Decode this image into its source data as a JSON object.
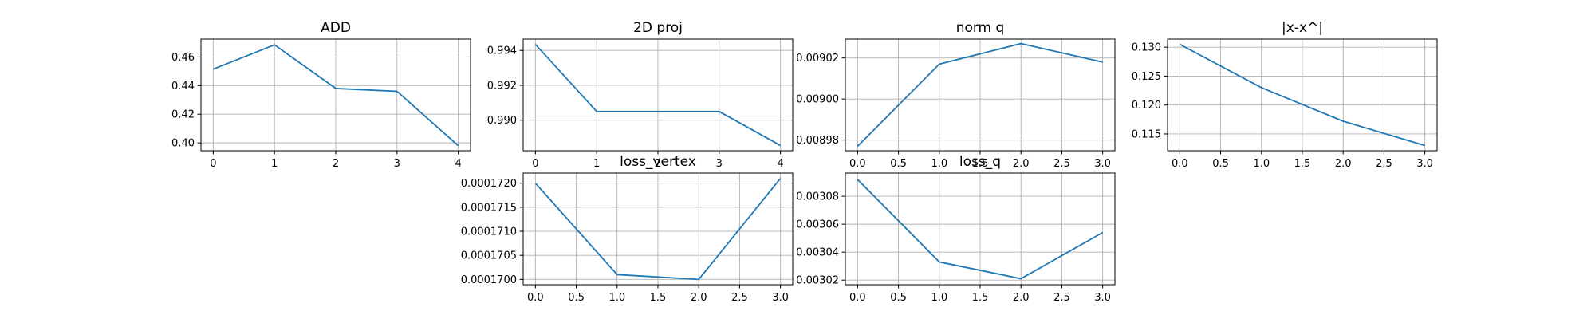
{
  "chart_data": [
    {
      "type": "line",
      "title": "ADD",
      "xlabel": "",
      "ylabel": "",
      "x": [
        0,
        1,
        2,
        3,
        4
      ],
      "series": [
        {
          "values": [
            0.4515,
            0.4685,
            0.438,
            0.436,
            0.398
          ]
        }
      ],
      "xlim": [
        -0.2,
        4.2
      ],
      "ylim": [
        0.3945,
        0.4725
      ],
      "xticks": [
        0,
        1,
        2,
        3,
        4
      ],
      "yticks": [
        0.4,
        0.42,
        0.44,
        0.46
      ],
      "xtick_labels": [
        "0",
        "1",
        "2",
        "3",
        "4"
      ],
      "ytick_labels": [
        "0.40",
        "0.42",
        "0.44",
        "0.46"
      ],
      "grid": true,
      "color": "#1f77b4"
    },
    {
      "type": "line",
      "title": "2D proj",
      "xlabel": "",
      "ylabel": "",
      "x": [
        0,
        1,
        2,
        3,
        4
      ],
      "series": [
        {
          "values": [
            0.99435,
            0.9905,
            0.9905,
            0.9905,
            0.98855
          ]
        }
      ],
      "xlim": [
        -0.2,
        4.2
      ],
      "ylim": [
        0.98825,
        0.99465
      ],
      "xticks": [
        0,
        1,
        2,
        3,
        4
      ],
      "yticks": [
        0.99,
        0.992,
        0.994
      ],
      "xtick_labels": [
        "0",
        "1",
        "2",
        "3",
        "4"
      ],
      "ytick_labels": [
        "0.990",
        "0.992",
        "0.994"
      ],
      "grid": true,
      "color": "#1f77b4"
    },
    {
      "type": "line",
      "title": "norm q",
      "xlabel": "",
      "ylabel": "",
      "x": [
        0,
        1,
        2,
        3
      ],
      "series": [
        {
          "values": [
            0.008977,
            0.009017,
            0.009027,
            0.009018
          ]
        }
      ],
      "xlim": [
        -0.15,
        3.15
      ],
      "ylim": [
        0.0089748,
        0.0090292
      ],
      "xticks": [
        0,
        0.5,
        1,
        1.5,
        2,
        2.5,
        3
      ],
      "yticks": [
        0.00898,
        0.009,
        0.00902
      ],
      "xtick_labels": [
        "0.0",
        "0.5",
        "1.0",
        "1.5",
        "2.0",
        "2.5",
        "3.0"
      ],
      "ytick_labels": [
        "0.00898",
        "0.00900",
        "0.00902"
      ],
      "grid": true,
      "color": "#1f77b4"
    },
    {
      "type": "line",
      "title": "|x-x^|",
      "xlabel": "",
      "ylabel": "",
      "x": [
        0,
        1,
        2,
        3
      ],
      "series": [
        {
          "values": [
            0.1305,
            0.123,
            0.1172,
            0.113
          ]
        }
      ],
      "xlim": [
        -0.15,
        3.15
      ],
      "ylim": [
        0.1121,
        0.1314
      ],
      "xticks": [
        0,
        0.5,
        1,
        1.5,
        2,
        2.5,
        3
      ],
      "yticks": [
        0.115,
        0.12,
        0.125,
        0.13
      ],
      "xtick_labels": [
        "0.0",
        "0.5",
        "1.0",
        "1.5",
        "2.0",
        "2.5",
        "3.0"
      ],
      "ytick_labels": [
        "0.115",
        "0.120",
        "0.125",
        "0.130"
      ],
      "grid": true,
      "color": "#1f77b4"
    },
    {
      "type": "line",
      "title": "loss_vertex",
      "xlabel": "",
      "ylabel": "",
      "x": [
        0,
        1,
        2,
        3
      ],
      "series": [
        {
          "values": [
            0.000172,
            0.0001701,
            0.00017,
            0.0001721
          ]
        }
      ],
      "xlim": [
        -0.15,
        3.15
      ],
      "ylim": [
        0.00016989,
        0.00017221
      ],
      "xticks": [
        0,
        0.5,
        1,
        1.5,
        2,
        2.5,
        3
      ],
      "yticks": [
        0.00017,
        0.0001705,
        0.000171,
        0.0001715,
        0.000172
      ],
      "xtick_labels": [
        "0.0",
        "0.5",
        "1.0",
        "1.5",
        "2.0",
        "2.5",
        "3.0"
      ],
      "ytick_labels": [
        "0.0001700",
        "0.0001705",
        "0.0001710",
        "0.0001715",
        "0.0001720"
      ],
      "grid": true,
      "color": "#1f77b4"
    },
    {
      "type": "line",
      "title": "loss_q",
      "xlabel": "",
      "ylabel": "",
      "x": [
        0,
        1,
        2,
        3
      ],
      "series": [
        {
          "values": [
            0.003092,
            0.003033,
            0.003021,
            0.003054
          ]
        }
      ],
      "xlim": [
        -0.15,
        3.15
      ],
      "ylim": [
        0.0030167,
        0.0030966
      ],
      "xticks": [
        0,
        0.5,
        1,
        1.5,
        2,
        2.5,
        3
      ],
      "yticks": [
        0.00302,
        0.00304,
        0.00306,
        0.00308
      ],
      "xtick_labels": [
        "0.0",
        "0.5",
        "1.0",
        "1.5",
        "2.0",
        "2.5",
        "3.0"
      ],
      "ytick_labels": [
        "0.00302",
        "0.00304",
        "0.00306",
        "0.00308"
      ],
      "grid": true,
      "color": "#1f77b4"
    }
  ]
}
